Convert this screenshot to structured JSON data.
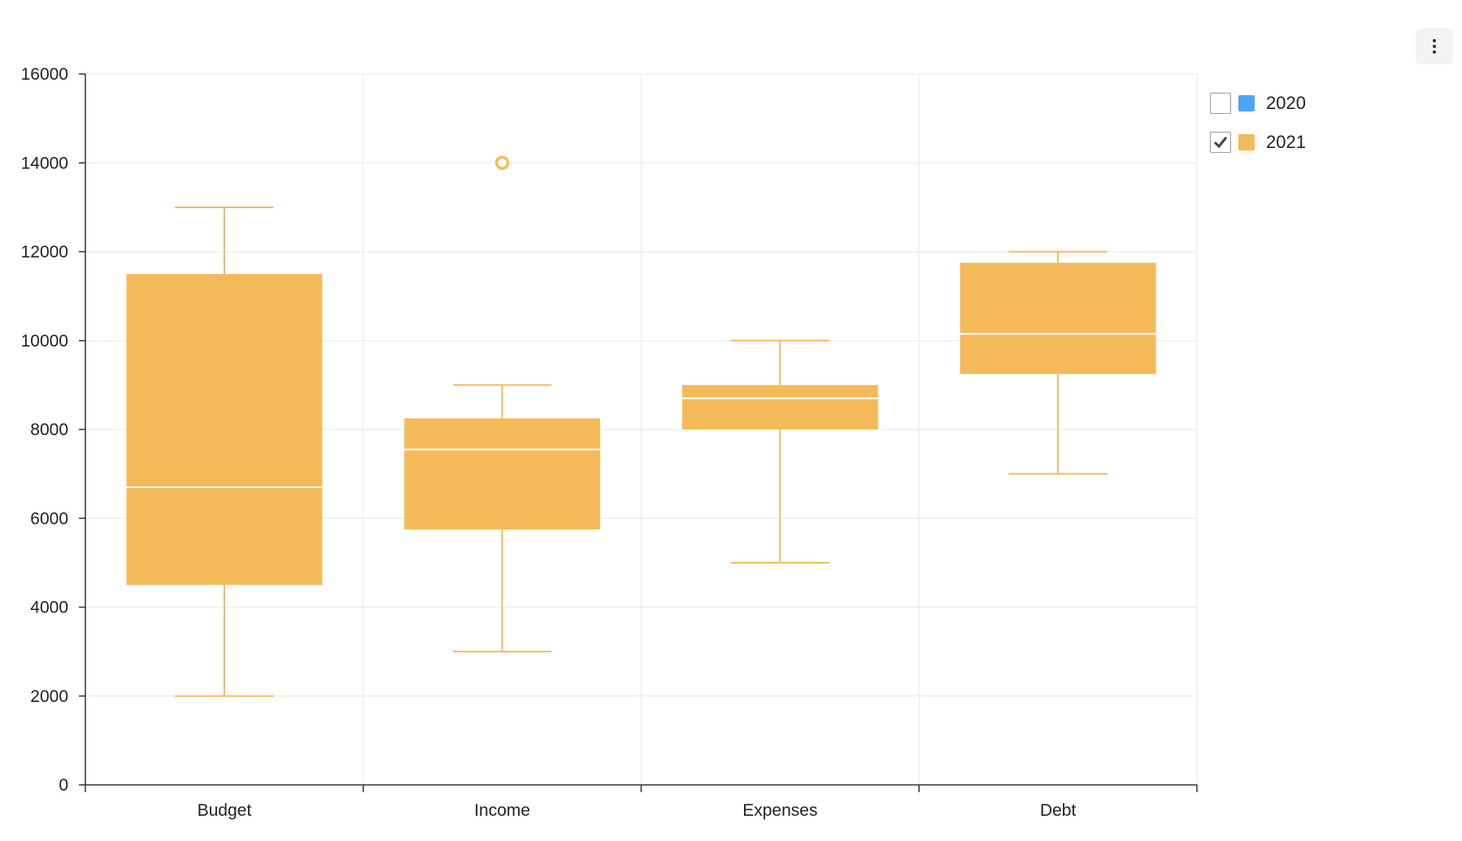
{
  "menu": {
    "icon": "more-vertical-icon"
  },
  "legend": [
    {
      "label": "2020",
      "color": "#4ca3f5",
      "checked": false
    },
    {
      "label": "2021",
      "color": "#f4ba59",
      "checked": true
    }
  ],
  "chart_data": {
    "type": "boxplot",
    "categories": [
      "Budget",
      "Income",
      "Expenses",
      "Debt"
    ],
    "ylim": [
      0,
      16000
    ],
    "yticks": [
      0,
      2000,
      4000,
      6000,
      8000,
      10000,
      12000,
      14000,
      16000
    ],
    "grid": true,
    "legend_position": "right",
    "series": [
      {
        "name": "2021",
        "color": "#f4ba59",
        "boxes": [
          {
            "min": 2000,
            "q1": 4500,
            "median": 6700,
            "q3": 11500,
            "max": 13000
          },
          {
            "min": 3000,
            "q1": 5750,
            "median": 7550,
            "q3": 8250,
            "max": 9000
          },
          {
            "min": 5000,
            "q1": 8000,
            "median": 8700,
            "q3": 9000,
            "max": 10000
          },
          {
            "min": 7000,
            "q1": 9250,
            "median": 10150,
            "q3": 11750,
            "max": 12000
          }
        ],
        "outliers": [
          {
            "category": "Income",
            "value": 14000
          }
        ]
      }
    ]
  }
}
